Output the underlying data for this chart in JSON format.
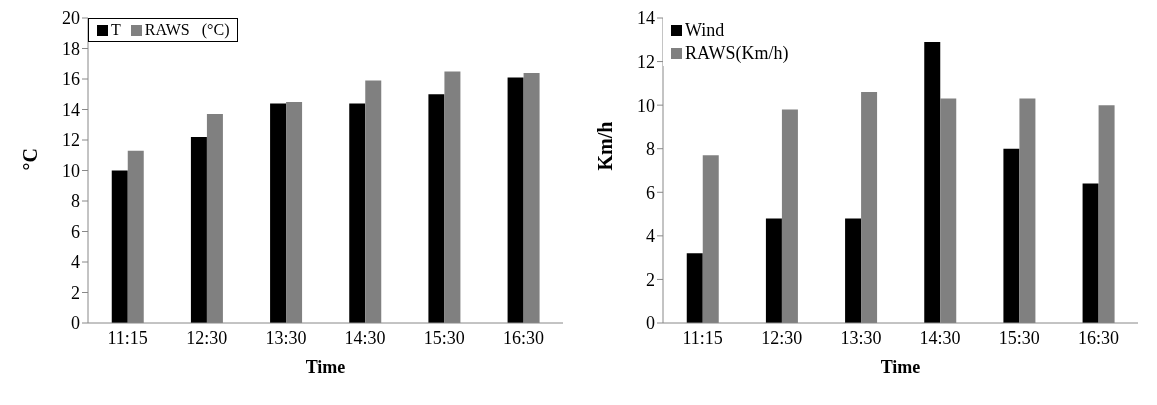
{
  "chart_data": [
    {
      "type": "bar",
      "xlabel": "Time",
      "ylabel": "°C",
      "categories": [
        "11:15",
        "12:30",
        "13:30",
        "14:30",
        "15:30",
        "16:30"
      ],
      "series": [
        {
          "name": "T",
          "color": "#000000",
          "values": [
            10,
            12.2,
            14.4,
            14.4,
            15,
            16.1
          ]
        },
        {
          "name": "RAWS   (°C)",
          "color": "#808080",
          "values": [
            11.3,
            13.7,
            14.5,
            15.9,
            16.5,
            16.4
          ]
        }
      ],
      "ylim": [
        0,
        20
      ],
      "yticks": [
        0,
        2,
        4,
        6,
        8,
        10,
        12,
        14,
        16,
        18,
        20
      ],
      "grid": false,
      "legend": "top left"
    },
    {
      "type": "bar",
      "xlabel": "Time",
      "ylabel": "Km/h",
      "categories": [
        "11:15",
        "12:30",
        "13:30",
        "14:30",
        "15:30",
        "16:30"
      ],
      "series": [
        {
          "name": "Wind",
          "color": "#000000",
          "values": [
            3.2,
            4.8,
            4.8,
            12.9,
            8,
            6.4
          ]
        },
        {
          "name": "RAWS(Km/h)",
          "color": "#808080",
          "values": [
            7.7,
            9.8,
            10.6,
            10.3,
            10.3,
            10
          ]
        }
      ],
      "ylim": [
        0,
        14
      ],
      "yticks": [
        0,
        2,
        4,
        6,
        8,
        10,
        12,
        14
      ],
      "grid": false,
      "legend": "top left"
    }
  ]
}
